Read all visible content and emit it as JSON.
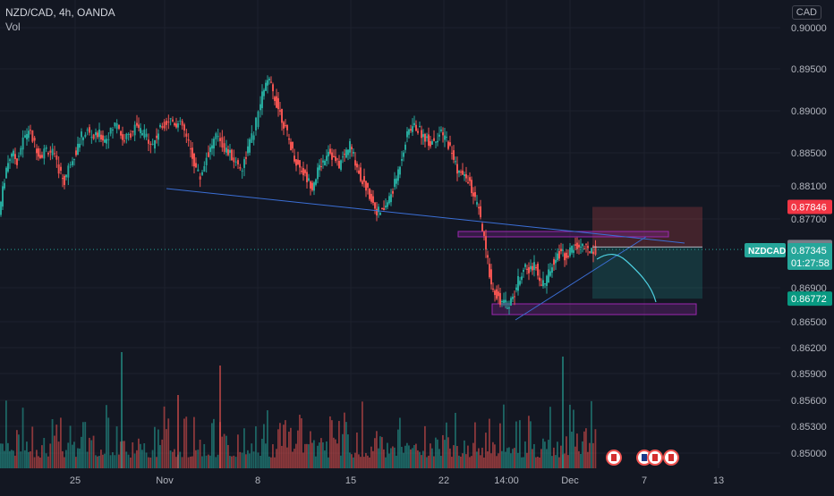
{
  "header": {
    "symbol_line": "NZD/CAD, 4h, OANDA",
    "volume_label": "Vol",
    "currency": "CAD"
  },
  "colors": {
    "background": "#131722",
    "up": "#26a69a",
    "down": "#ef5350",
    "grid": "#1e222d",
    "axis_text": "#b2b5be",
    "trendline": "#3b6fd6",
    "zone": "#9c27b0",
    "price_line": "#26a69a"
  },
  "chart_data": {
    "type": "candlestick",
    "symbol": "NZDCAD",
    "timeframe": "4h",
    "source": "OANDA",
    "y_axis": {
      "ticks": [
        "0.90000",
        "0.89500",
        "0.89000",
        "0.88500",
        "0.88100",
        "0.87700",
        "0.86900",
        "0.86500",
        "0.86200",
        "0.85900",
        "0.85600",
        "0.85300",
        "0.85000"
      ],
      "tick_values": [
        0.9,
        0.895,
        0.89,
        0.885,
        0.881,
        0.877,
        0.869,
        0.865,
        0.862,
        0.859,
        0.856,
        0.853,
        0.85
      ]
    },
    "x_axis": {
      "ticks": [
        "25",
        "Nov",
        "8",
        "15",
        "22",
        "14:00",
        "Dec",
        "7",
        "13"
      ]
    },
    "price_labels": {
      "stop_loss": "0.87846",
      "entry": "0.87374",
      "current_symbol": "NZDCAD",
      "current_price": "0.87345",
      "countdown": "01:27:58",
      "take_profit": "0.86772"
    },
    "series_close_path": [
      [
        0,
        0.8775
      ],
      [
        4,
        0.8805
      ],
      [
        8,
        0.8832
      ],
      [
        14,
        0.8851
      ],
      [
        20,
        0.884
      ],
      [
        27,
        0.8865
      ],
      [
        33,
        0.8878
      ],
      [
        40,
        0.886
      ],
      [
        46,
        0.8846
      ],
      [
        53,
        0.8855
      ],
      [
        60,
        0.885
      ],
      [
        67,
        0.883
      ],
      [
        73,
        0.8815
      ],
      [
        80,
        0.884
      ],
      [
        86,
        0.8852
      ],
      [
        92,
        0.887
      ],
      [
        99,
        0.8875
      ],
      [
        106,
        0.8868
      ],
      [
        112,
        0.8872
      ],
      [
        118,
        0.8866
      ],
      [
        125,
        0.8875
      ],
      [
        132,
        0.8888
      ],
      [
        138,
        0.8865
      ],
      [
        145,
        0.887
      ],
      [
        152,
        0.888
      ],
      [
        158,
        0.8876
      ],
      [
        165,
        0.887
      ],
      [
        172,
        0.886
      ],
      [
        178,
        0.8875
      ],
      [
        185,
        0.8885
      ],
      [
        192,
        0.889
      ],
      [
        198,
        0.8885
      ],
      [
        205,
        0.8882
      ],
      [
        212,
        0.886
      ],
      [
        218,
        0.8838
      ],
      [
        225,
        0.882
      ],
      [
        232,
        0.8845
      ],
      [
        238,
        0.886
      ],
      [
        245,
        0.8872
      ],
      [
        252,
        0.8855
      ],
      [
        258,
        0.8848
      ],
      [
        265,
        0.8838
      ],
      [
        272,
        0.8832
      ],
      [
        278,
        0.8855
      ],
      [
        285,
        0.8875
      ],
      [
        290,
        0.8898
      ],
      [
        296,
        0.8928
      ],
      [
        302,
        0.8935
      ],
      [
        308,
        0.8915
      ],
      [
        314,
        0.8898
      ],
      [
        320,
        0.8878
      ],
      [
        326,
        0.8858
      ],
      [
        332,
        0.8838
      ],
      [
        338,
        0.883
      ],
      [
        344,
        0.8818
      ],
      [
        350,
        0.881
      ],
      [
        356,
        0.8828
      ],
      [
        362,
        0.884
      ],
      [
        368,
        0.8855
      ],
      [
        374,
        0.8842
      ],
      [
        380,
        0.8835
      ],
      [
        386,
        0.8848
      ],
      [
        392,
        0.886
      ],
      [
        398,
        0.884
      ],
      [
        404,
        0.882
      ],
      [
        410,
        0.8808
      ],
      [
        416,
        0.8795
      ],
      [
        422,
        0.878
      ],
      [
        428,
        0.8778
      ],
      [
        434,
        0.879
      ],
      [
        440,
        0.8805
      ],
      [
        446,
        0.8828
      ],
      [
        452,
        0.8855
      ],
      [
        458,
        0.8878
      ],
      [
        464,
        0.8882
      ],
      [
        470,
        0.8876
      ],
      [
        476,
        0.8868
      ],
      [
        482,
        0.8862
      ],
      [
        488,
        0.8868
      ],
      [
        494,
        0.8872
      ],
      [
        500,
        0.8866
      ],
      [
        506,
        0.885
      ],
      [
        512,
        0.883
      ],
      [
        518,
        0.8822
      ],
      [
        524,
        0.8818
      ],
      [
        530,
        0.8798
      ],
      [
        536,
        0.878
      ],
      [
        542,
        0.8745
      ],
      [
        546,
        0.872
      ],
      [
        550,
        0.8695
      ],
      [
        556,
        0.8682
      ],
      [
        562,
        0.8672
      ],
      [
        568,
        0.867
      ],
      [
        574,
        0.8678
      ],
      [
        580,
        0.8698
      ],
      [
        586,
        0.8714
      ],
      [
        592,
        0.8708
      ],
      [
        598,
        0.872
      ],
      [
        604,
        0.8698
      ],
      [
        610,
        0.8696
      ],
      [
        616,
        0.8712
      ],
      [
        622,
        0.8728
      ],
      [
        628,
        0.873
      ],
      [
        634,
        0.8727
      ],
      [
        640,
        0.8735
      ],
      [
        646,
        0.8738
      ],
      [
        652,
        0.874
      ],
      [
        658,
        0.8732
      ],
      [
        662,
        0.8736
      ],
      [
        667,
        0.8734
      ]
    ],
    "trendlines": [
      "descending support",
      "ascending support"
    ],
    "zones": [
      "upper resistance zone",
      "lower support zone"
    ],
    "position": {
      "type": "short",
      "entry": "0.87374",
      "stop": "0.87846",
      "target": "0.86772"
    }
  }
}
